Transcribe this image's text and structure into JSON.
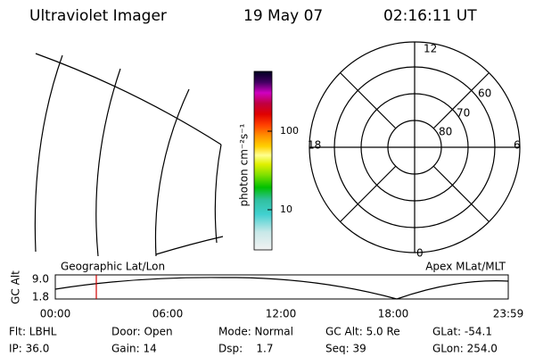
{
  "header": {
    "title": "Ultraviolet Imager",
    "date": "19 May 07",
    "time": "02:16:11 UT"
  },
  "colorbar": {
    "label": "photon cm⁻²s⁻¹",
    "ticks": [
      "100",
      "10"
    ]
  },
  "polar": {
    "mlt_labels": [
      "12",
      "18",
      "6",
      "0"
    ],
    "mlat_labels": [
      "60",
      "70",
      "80"
    ]
  },
  "strip": {
    "left_title": "Geographic Lat/Lon",
    "right_title": "Apex MLat/MLT",
    "y_label": "GC Alt",
    "y_ticks": [
      "9.0",
      "1.8"
    ],
    "x_ticks": [
      "00:00",
      "06:00",
      "12:00",
      "18:00",
      "23:59"
    ]
  },
  "info": {
    "rows": [
      [
        "Flt: LBHL",
        "Door: Open",
        "Mode: Normal",
        "GC Alt: 5.0 Re",
        "GLat: -54.1"
      ],
      [
        "IP: 36.0",
        "Gain: 14",
        "Dsp:    1.7",
        "Seq: 39",
        "GLon: 254.0"
      ]
    ]
  }
}
